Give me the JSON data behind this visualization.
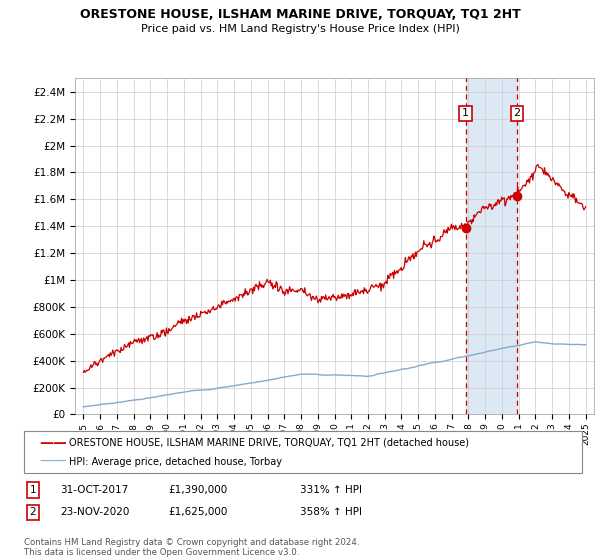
{
  "title": "ORESTONE HOUSE, ILSHAM MARINE DRIVE, TORQUAY, TQ1 2HT",
  "subtitle": "Price paid vs. HM Land Registry's House Price Index (HPI)",
  "ylabel_ticks": [
    "£0",
    "£200K",
    "£400K",
    "£600K",
    "£800K",
    "£1M",
    "£1.2M",
    "£1.4M",
    "£1.6M",
    "£1.8M",
    "£2M",
    "£2.2M",
    "£2.4M"
  ],
  "ytick_values": [
    0,
    200000,
    400000,
    600000,
    800000,
    1000000,
    1200000,
    1400000,
    1600000,
    1800000,
    2000000,
    2200000,
    2400000
  ],
  "ylim": [
    0,
    2500000
  ],
  "xlim_years": [
    1994.5,
    2025.5
  ],
  "xtick_years": [
    1995,
    1996,
    1997,
    1998,
    1999,
    2000,
    2001,
    2002,
    2003,
    2004,
    2005,
    2006,
    2007,
    2008,
    2009,
    2010,
    2011,
    2012,
    2013,
    2014,
    2015,
    2016,
    2017,
    2018,
    2019,
    2020,
    2021,
    2022,
    2023,
    2024,
    2025
  ],
  "transaction1_x": 2017.83,
  "transaction1_y": 1390000,
  "transaction2_x": 2020.9,
  "transaction2_y": 1625000,
  "transaction1_date": "31-OCT-2017",
  "transaction1_price": "£1,390,000",
  "transaction1_hpi": "331% ↑ HPI",
  "transaction2_date": "23-NOV-2020",
  "transaction2_price": "£1,625,000",
  "transaction2_hpi": "358% ↑ HPI",
  "legend_line1": "ORESTONE HOUSE, ILSHAM MARINE DRIVE, TORQUAY, TQ1 2HT (detached house)",
  "legend_line2": "HPI: Average price, detached house, Torbay",
  "footer": "Contains HM Land Registry data © Crown copyright and database right 2024.\nThis data is licensed under the Open Government Licence v3.0.",
  "line_color_red": "#cc0000",
  "line_color_blue": "#88aacc",
  "grid_color": "#cccccc",
  "shade_color": "#dde8f5"
}
